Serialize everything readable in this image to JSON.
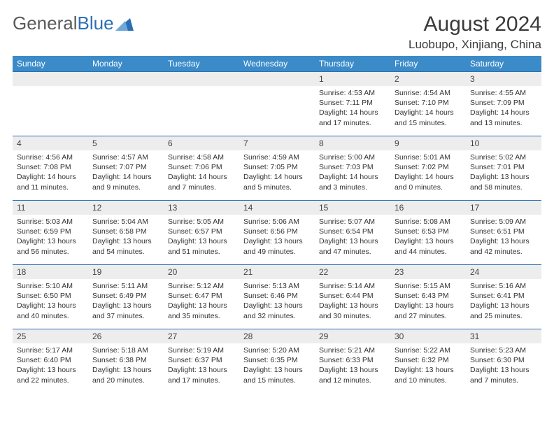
{
  "brand": {
    "part1": "General",
    "part2": "Blue"
  },
  "title": "August 2024",
  "location": "Luobupo, Xinjiang, China",
  "colors": {
    "header_bg": "#3b8bc9",
    "header_text": "#ffffff",
    "daynum_bg": "#ededed",
    "rule": "#2d6fb4",
    "text": "#333333",
    "logo_gray": "#5a5a5a",
    "logo_blue": "#2d6fb4"
  },
  "dayNames": [
    "Sunday",
    "Monday",
    "Tuesday",
    "Wednesday",
    "Thursday",
    "Friday",
    "Saturday"
  ],
  "weeks": [
    [
      null,
      null,
      null,
      null,
      {
        "n": "1",
        "sr": "4:53 AM",
        "ss": "7:11 PM",
        "dl": "14 hours and 17 minutes."
      },
      {
        "n": "2",
        "sr": "4:54 AM",
        "ss": "7:10 PM",
        "dl": "14 hours and 15 minutes."
      },
      {
        "n": "3",
        "sr": "4:55 AM",
        "ss": "7:09 PM",
        "dl": "14 hours and 13 minutes."
      }
    ],
    [
      {
        "n": "4",
        "sr": "4:56 AM",
        "ss": "7:08 PM",
        "dl": "14 hours and 11 minutes."
      },
      {
        "n": "5",
        "sr": "4:57 AM",
        "ss": "7:07 PM",
        "dl": "14 hours and 9 minutes."
      },
      {
        "n": "6",
        "sr": "4:58 AM",
        "ss": "7:06 PM",
        "dl": "14 hours and 7 minutes."
      },
      {
        "n": "7",
        "sr": "4:59 AM",
        "ss": "7:05 PM",
        "dl": "14 hours and 5 minutes."
      },
      {
        "n": "8",
        "sr": "5:00 AM",
        "ss": "7:03 PM",
        "dl": "14 hours and 3 minutes."
      },
      {
        "n": "9",
        "sr": "5:01 AM",
        "ss": "7:02 PM",
        "dl": "14 hours and 0 minutes."
      },
      {
        "n": "10",
        "sr": "5:02 AM",
        "ss": "7:01 PM",
        "dl": "13 hours and 58 minutes."
      }
    ],
    [
      {
        "n": "11",
        "sr": "5:03 AM",
        "ss": "6:59 PM",
        "dl": "13 hours and 56 minutes."
      },
      {
        "n": "12",
        "sr": "5:04 AM",
        "ss": "6:58 PM",
        "dl": "13 hours and 54 minutes."
      },
      {
        "n": "13",
        "sr": "5:05 AM",
        "ss": "6:57 PM",
        "dl": "13 hours and 51 minutes."
      },
      {
        "n": "14",
        "sr": "5:06 AM",
        "ss": "6:56 PM",
        "dl": "13 hours and 49 minutes."
      },
      {
        "n": "15",
        "sr": "5:07 AM",
        "ss": "6:54 PM",
        "dl": "13 hours and 47 minutes."
      },
      {
        "n": "16",
        "sr": "5:08 AM",
        "ss": "6:53 PM",
        "dl": "13 hours and 44 minutes."
      },
      {
        "n": "17",
        "sr": "5:09 AM",
        "ss": "6:51 PM",
        "dl": "13 hours and 42 minutes."
      }
    ],
    [
      {
        "n": "18",
        "sr": "5:10 AM",
        "ss": "6:50 PM",
        "dl": "13 hours and 40 minutes."
      },
      {
        "n": "19",
        "sr": "5:11 AM",
        "ss": "6:49 PM",
        "dl": "13 hours and 37 minutes."
      },
      {
        "n": "20",
        "sr": "5:12 AM",
        "ss": "6:47 PM",
        "dl": "13 hours and 35 minutes."
      },
      {
        "n": "21",
        "sr": "5:13 AM",
        "ss": "6:46 PM",
        "dl": "13 hours and 32 minutes."
      },
      {
        "n": "22",
        "sr": "5:14 AM",
        "ss": "6:44 PM",
        "dl": "13 hours and 30 minutes."
      },
      {
        "n": "23",
        "sr": "5:15 AM",
        "ss": "6:43 PM",
        "dl": "13 hours and 27 minutes."
      },
      {
        "n": "24",
        "sr": "5:16 AM",
        "ss": "6:41 PM",
        "dl": "13 hours and 25 minutes."
      }
    ],
    [
      {
        "n": "25",
        "sr": "5:17 AM",
        "ss": "6:40 PM",
        "dl": "13 hours and 22 minutes."
      },
      {
        "n": "26",
        "sr": "5:18 AM",
        "ss": "6:38 PM",
        "dl": "13 hours and 20 minutes."
      },
      {
        "n": "27",
        "sr": "5:19 AM",
        "ss": "6:37 PM",
        "dl": "13 hours and 17 minutes."
      },
      {
        "n": "28",
        "sr": "5:20 AM",
        "ss": "6:35 PM",
        "dl": "13 hours and 15 minutes."
      },
      {
        "n": "29",
        "sr": "5:21 AM",
        "ss": "6:33 PM",
        "dl": "13 hours and 12 minutes."
      },
      {
        "n": "30",
        "sr": "5:22 AM",
        "ss": "6:32 PM",
        "dl": "13 hours and 10 minutes."
      },
      {
        "n": "31",
        "sr": "5:23 AM",
        "ss": "6:30 PM",
        "dl": "13 hours and 7 minutes."
      }
    ]
  ],
  "labels": {
    "sunrise": "Sunrise:",
    "sunset": "Sunset:",
    "daylight": "Daylight:"
  }
}
